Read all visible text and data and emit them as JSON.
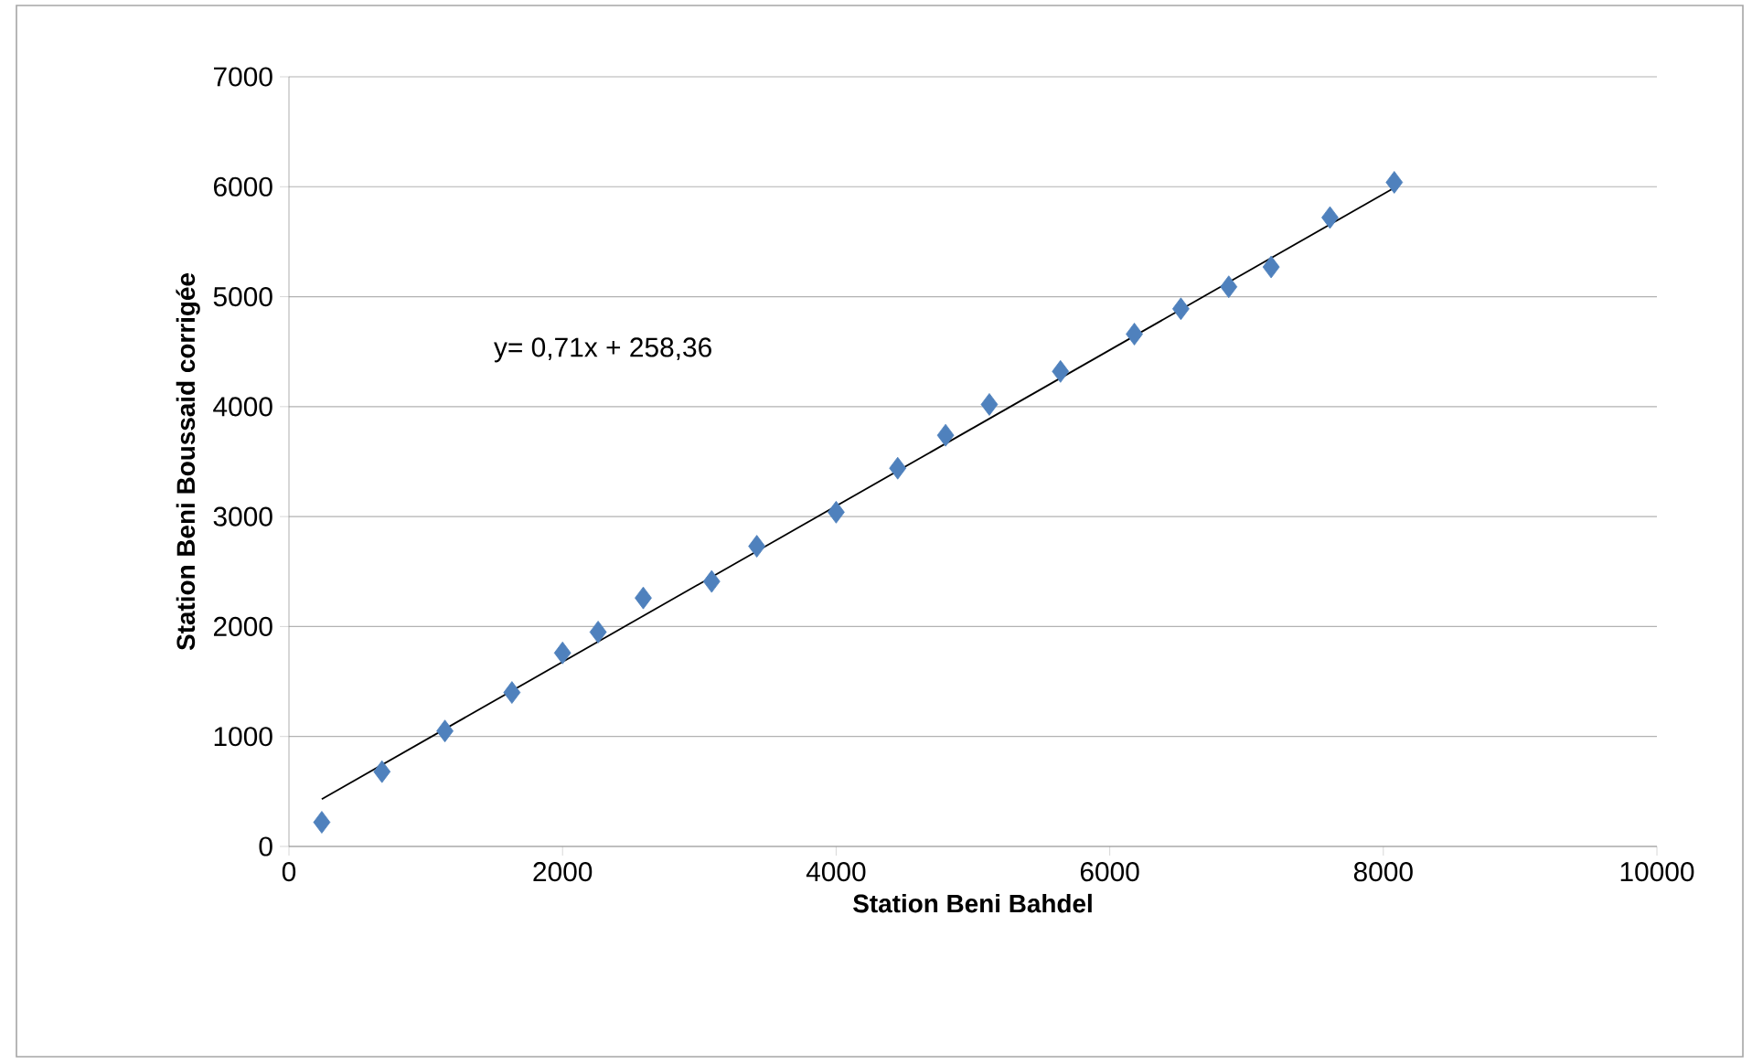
{
  "chart_data": {
    "type": "scatter",
    "xlabel": "Station Beni Bahdel",
    "ylabel": "Station Beni Boussaid corrigée",
    "annotations": [
      "y= 0,71x + 258,36"
    ],
    "xlim": [
      0,
      10000
    ],
    "ylim": [
      0,
      7000
    ],
    "xticks": [
      0,
      2000,
      4000,
      6000,
      8000,
      10000
    ],
    "yticks": [
      0,
      1000,
      2000,
      3000,
      4000,
      5000,
      6000,
      7000
    ],
    "grid": "y",
    "marker": "diamond",
    "series": [
      {
        "color": "#4f81bd",
        "x": [
          240,
          680,
          1140,
          1630,
          2000,
          2260,
          2590,
          3090,
          3420,
          4000,
          4450,
          4800,
          5120,
          5640,
          6180,
          6520,
          6870,
          7180,
          7610,
          8080
        ],
        "values": [
          220,
          680,
          1050,
          1400,
          1760,
          1950,
          2260,
          2410,
          2730,
          3040,
          3440,
          3740,
          4020,
          4320,
          4660,
          4890,
          5090,
          5270,
          5720,
          6040
        ]
      },
      {
        "type": "line",
        "color": "#000000",
        "marker": "none",
        "line_style": "solid",
        "x": [
          240,
          8080
        ],
        "values": [
          430,
          5990
        ]
      }
    ]
  }
}
